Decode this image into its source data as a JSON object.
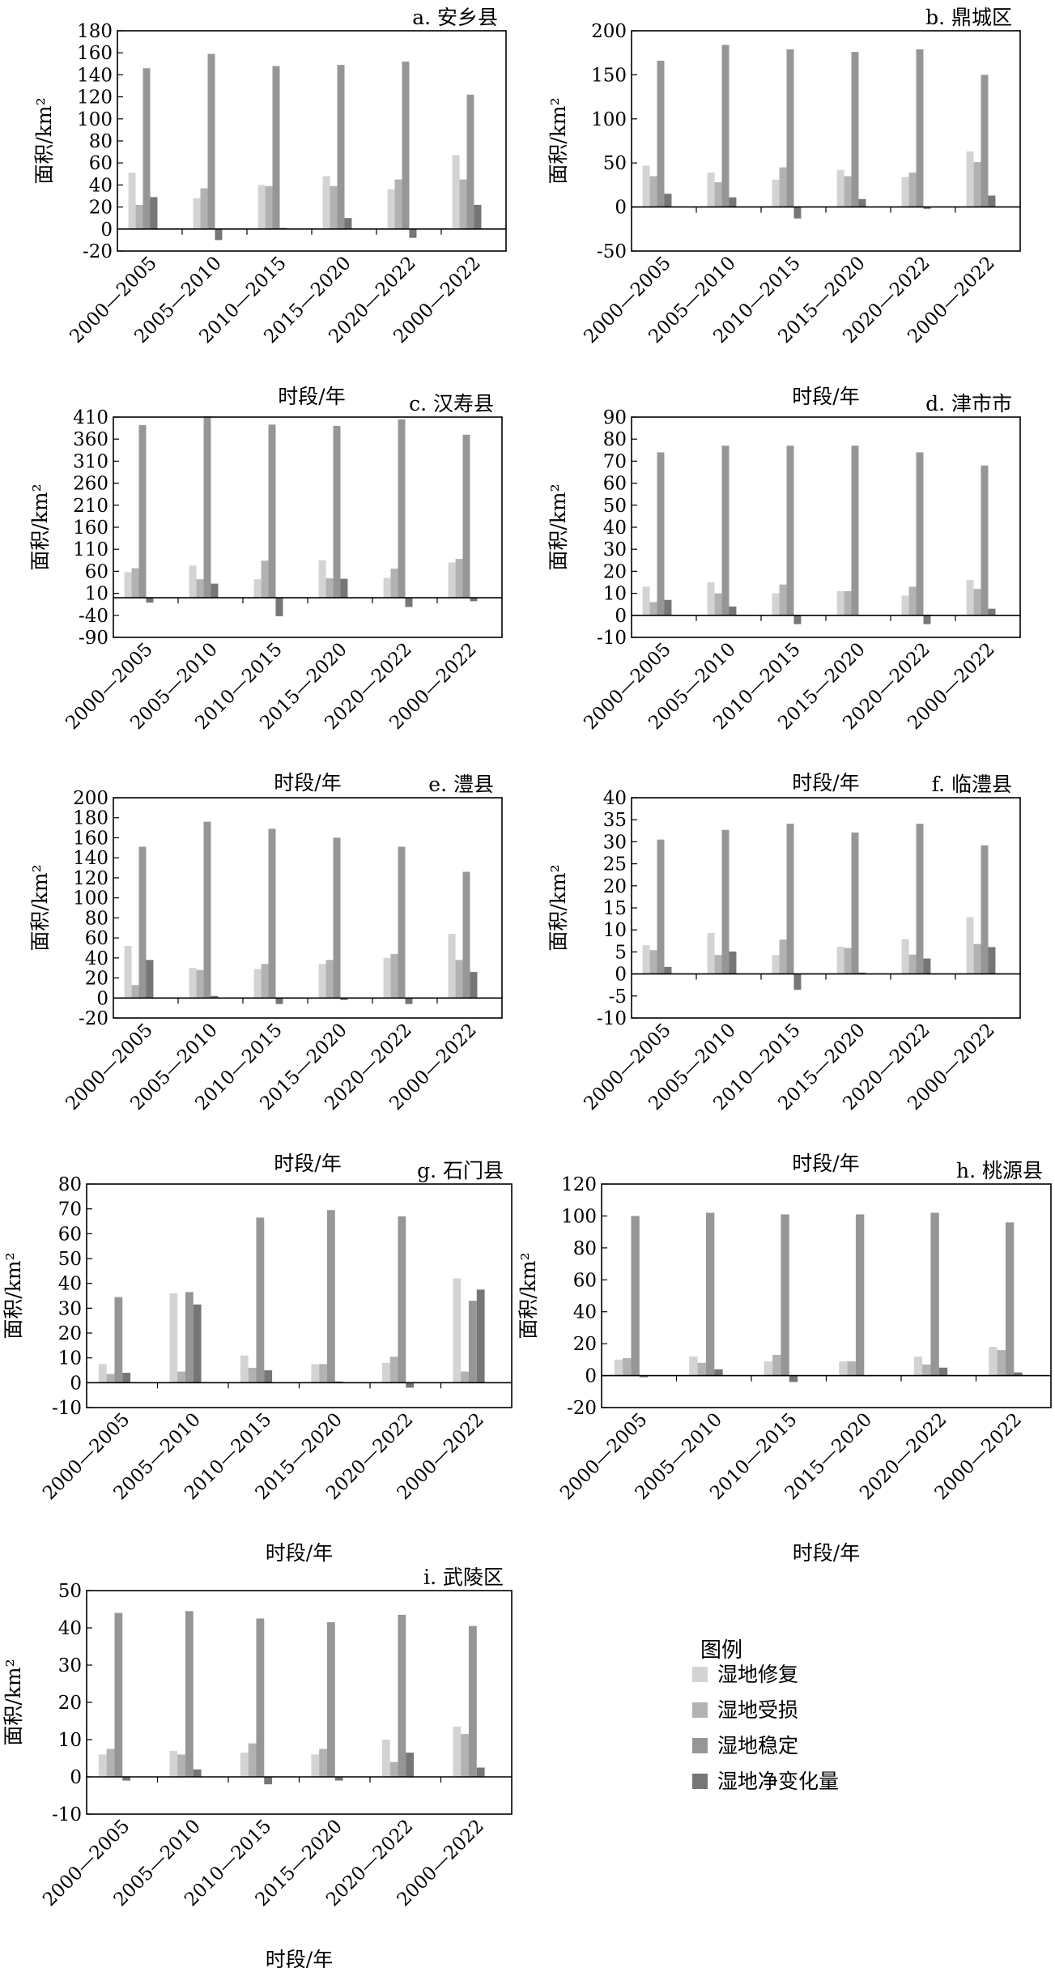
{
  "legend": {
    "title": "图例",
    "items": [
      {
        "label": "湿地修复",
        "color": "#d3d3d3"
      },
      {
        "label": "湿地受损",
        "color": "#b2b2b2"
      },
      {
        "label": "湿地稳定",
        "color": "#969696"
      },
      {
        "label": "湿地净变化量",
        "color": "#767676"
      }
    ]
  },
  "chart_data": [
    {
      "type": "bar",
      "title": "a. 安乡县",
      "xlabel": "时段/年",
      "ylabel": "面积/km²",
      "ylim": [
        -20,
        180
      ],
      "yticks": [
        -20,
        0,
        20,
        40,
        60,
        80,
        100,
        120,
        140,
        160,
        180
      ],
      "categories": [
        "2000—2005",
        "2005—2010",
        "2010—2015",
        "2015—2020",
        "2020—2022",
        "2000—2022"
      ],
      "series": [
        {
          "name": "湿地修复",
          "values": [
            51,
            28,
            40,
            48,
            36,
            67
          ]
        },
        {
          "name": "湿地受损",
          "values": [
            22,
            37,
            39,
            39,
            45,
            45
          ]
        },
        {
          "name": "湿地稳定",
          "values": [
            146,
            159,
            148,
            149,
            152,
            122
          ]
        },
        {
          "name": "湿地净变化量",
          "values": [
            29,
            -10,
            1,
            10,
            -8,
            22
          ]
        }
      ]
    },
    {
      "type": "bar",
      "title": "b. 鼎城区",
      "xlabel": "时段/年",
      "ylabel": "面积/km²",
      "ylim": [
        -50,
        200
      ],
      "yticks": [
        -50,
        0,
        50,
        100,
        150,
        200
      ],
      "categories": [
        "2000—2005",
        "2005—2010",
        "2010—2015",
        "2015—2020",
        "2020—2022",
        "2000—2022"
      ],
      "series": [
        {
          "name": "湿地修复",
          "values": [
            47,
            39,
            31,
            42,
            34,
            63
          ]
        },
        {
          "name": "湿地受损",
          "values": [
            35,
            28,
            45,
            35,
            39,
            51
          ]
        },
        {
          "name": "湿地稳定",
          "values": [
            166,
            184,
            179,
            176,
            179,
            150
          ]
        },
        {
          "name": "湿地净变化量",
          "values": [
            15,
            11,
            -13,
            9,
            -2,
            13
          ]
        }
      ]
    },
    {
      "type": "bar",
      "title": "c. 汉寿县",
      "xlabel": "时段/年",
      "ylabel": "面积/km²",
      "ylim": [
        -90,
        410
      ],
      "yticks": [
        -90,
        -40,
        10,
        60,
        110,
        160,
        210,
        260,
        310,
        360,
        410
      ],
      "categories": [
        "2000—2005",
        "2005—2010",
        "2010—2015",
        "2015—2020",
        "2020—2022",
        "2000—2022"
      ],
      "series": [
        {
          "name": "湿地修复",
          "values": [
            58,
            73,
            42,
            85,
            45,
            80
          ]
        },
        {
          "name": "湿地受损",
          "values": [
            67,
            42,
            84,
            44,
            66,
            88
          ]
        },
        {
          "name": "湿地稳定",
          "values": [
            392,
            412,
            393,
            390,
            405,
            370
          ]
        },
        {
          "name": "湿地净变化量",
          "values": [
            -11,
            32,
            -42,
            43,
            -21,
            -8
          ]
        }
      ]
    },
    {
      "type": "bar",
      "title": "d. 津市市",
      "xlabel": "时段/年",
      "ylabel": "面积/km²",
      "ylim": [
        -10,
        90
      ],
      "yticks": [
        -10,
        0,
        10,
        20,
        30,
        40,
        50,
        60,
        70,
        80,
        90
      ],
      "categories": [
        "2000—2005",
        "2005—2010",
        "2010—2015",
        "2015—2020",
        "2020—2022",
        "2000—2022"
      ],
      "series": [
        {
          "name": "湿地修复",
          "values": [
            13,
            15,
            10,
            11,
            9,
            16
          ]
        },
        {
          "name": "湿地受损",
          "values": [
            6,
            10,
            14,
            11,
            13,
            12
          ]
        },
        {
          "name": "湿地稳定",
          "values": [
            74,
            77,
            77,
            77,
            74,
            68
          ]
        },
        {
          "name": "湿地净变化量",
          "values": [
            7,
            4,
            -4,
            0,
            -4,
            3
          ]
        }
      ]
    },
    {
      "type": "bar",
      "title": "e. 澧县",
      "xlabel": "时段/年",
      "ylabel": "面积/km²",
      "ylim": [
        -20,
        200
      ],
      "yticks": [
        -20,
        0,
        20,
        40,
        60,
        80,
        100,
        120,
        140,
        160,
        180,
        200
      ],
      "categories": [
        "2000—2005",
        "2005—2010",
        "2010—2015",
        "2015—2020",
        "2020—2022",
        "2000—2022"
      ],
      "series": [
        {
          "name": "湿地修复",
          "values": [
            52,
            30,
            29,
            34,
            40,
            64
          ]
        },
        {
          "name": "湿地受损",
          "values": [
            13,
            28,
            34,
            38,
            44,
            38
          ]
        },
        {
          "name": "湿地稳定",
          "values": [
            151,
            176,
            169,
            160,
            151,
            126
          ]
        },
        {
          "name": "湿地净变化量",
          "values": [
            38,
            2,
            -6,
            -2,
            -6,
            26
          ]
        }
      ]
    },
    {
      "type": "bar",
      "title": "f. 临澧县",
      "xlabel": "时段/年",
      "ylabel": "面积/km²",
      "ylim": [
        -10,
        40
      ],
      "yticks": [
        -10,
        -5,
        0,
        5,
        10,
        15,
        20,
        25,
        30,
        35,
        40
      ],
      "categories": [
        "2000—2005",
        "2005—2010",
        "2010—2015",
        "2015—2020",
        "2020—2022",
        "2000—2022"
      ],
      "series": [
        {
          "name": "湿地修复",
          "values": [
            6.5,
            9.3,
            4.3,
            6.2,
            7.9,
            12.9
          ]
        },
        {
          "name": "湿地受损",
          "values": [
            5.4,
            4.3,
            7.8,
            5.9,
            4.4,
            6.8
          ]
        },
        {
          "name": "湿地稳定",
          "values": [
            30.5,
            32.7,
            34.1,
            32.1,
            34.1,
            29.2
          ]
        },
        {
          "name": "湿地净变化量",
          "values": [
            1.6,
            5.1,
            -3.6,
            0.3,
            3.5,
            6.1
          ]
        }
      ]
    },
    {
      "type": "bar",
      "title": "g. 石门县",
      "xlabel": "时段/年",
      "ylabel": "面积/km²",
      "ylim": [
        -10,
        80
      ],
      "yticks": [
        -10,
        0,
        10,
        20,
        30,
        40,
        50,
        60,
        70,
        80
      ],
      "categories": [
        "2000—2005",
        "2005—2010",
        "2010—2015",
        "2015—2020",
        "2020—2022",
        "2000—2022"
      ],
      "series": [
        {
          "name": "湿地修复",
          "values": [
            7.5,
            36,
            11,
            7.5,
            8,
            42
          ]
        },
        {
          "name": "湿地受损",
          "values": [
            3.5,
            4.5,
            6,
            7.5,
            10.5,
            4.5
          ]
        },
        {
          "name": "湿地稳定",
          "values": [
            34.5,
            36.5,
            66.5,
            69.5,
            67,
            33
          ]
        },
        {
          "name": "湿地净变化量",
          "values": [
            4,
            31.5,
            5,
            0.5,
            -2,
            37.5
          ]
        }
      ]
    },
    {
      "type": "bar",
      "title": "h. 桃源县",
      "xlabel": "时段/年",
      "ylabel": "面积/km²",
      "ylim": [
        -20,
        120
      ],
      "yticks": [
        -20,
        0,
        20,
        40,
        60,
        80,
        100,
        120
      ],
      "categories": [
        "2000—2005",
        "2005—2010",
        "2010—2015",
        "2015—2020",
        "2020—2022",
        "2000—2022"
      ],
      "series": [
        {
          "name": "湿地修复",
          "values": [
            10,
            12,
            9,
            9,
            12,
            18
          ]
        },
        {
          "name": "湿地受损",
          "values": [
            11,
            8,
            13,
            9,
            7,
            16
          ]
        },
        {
          "name": "湿地稳定",
          "values": [
            100,
            102,
            101,
            101,
            102,
            96
          ]
        },
        {
          "name": "湿地净变化量",
          "values": [
            -1,
            4,
            -4,
            0,
            5,
            2
          ]
        }
      ]
    },
    {
      "type": "bar",
      "title": "i. 武陵区",
      "xlabel": "时段/年",
      "ylabel": "面积/km²",
      "ylim": [
        -10,
        50
      ],
      "yticks": [
        -10,
        0,
        10,
        20,
        30,
        40,
        50
      ],
      "categories": [
        "2000—2005",
        "2005—2010",
        "2010—2015",
        "2015—2020",
        "2020—2022",
        "2000—2022"
      ],
      "series": [
        {
          "name": "湿地修复",
          "values": [
            6,
            7,
            6.5,
            6,
            10,
            13.5
          ]
        },
        {
          "name": "湿地受损",
          "values": [
            7.5,
            6,
            9,
            7.5,
            4,
            11.5
          ]
        },
        {
          "name": "湿地稳定",
          "values": [
            44,
            44.5,
            42.5,
            41.5,
            43.5,
            40.5
          ]
        },
        {
          "name": "湿地净变化量",
          "values": [
            -1,
            2,
            -2,
            -1,
            6.5,
            2.5
          ]
        }
      ]
    }
  ]
}
